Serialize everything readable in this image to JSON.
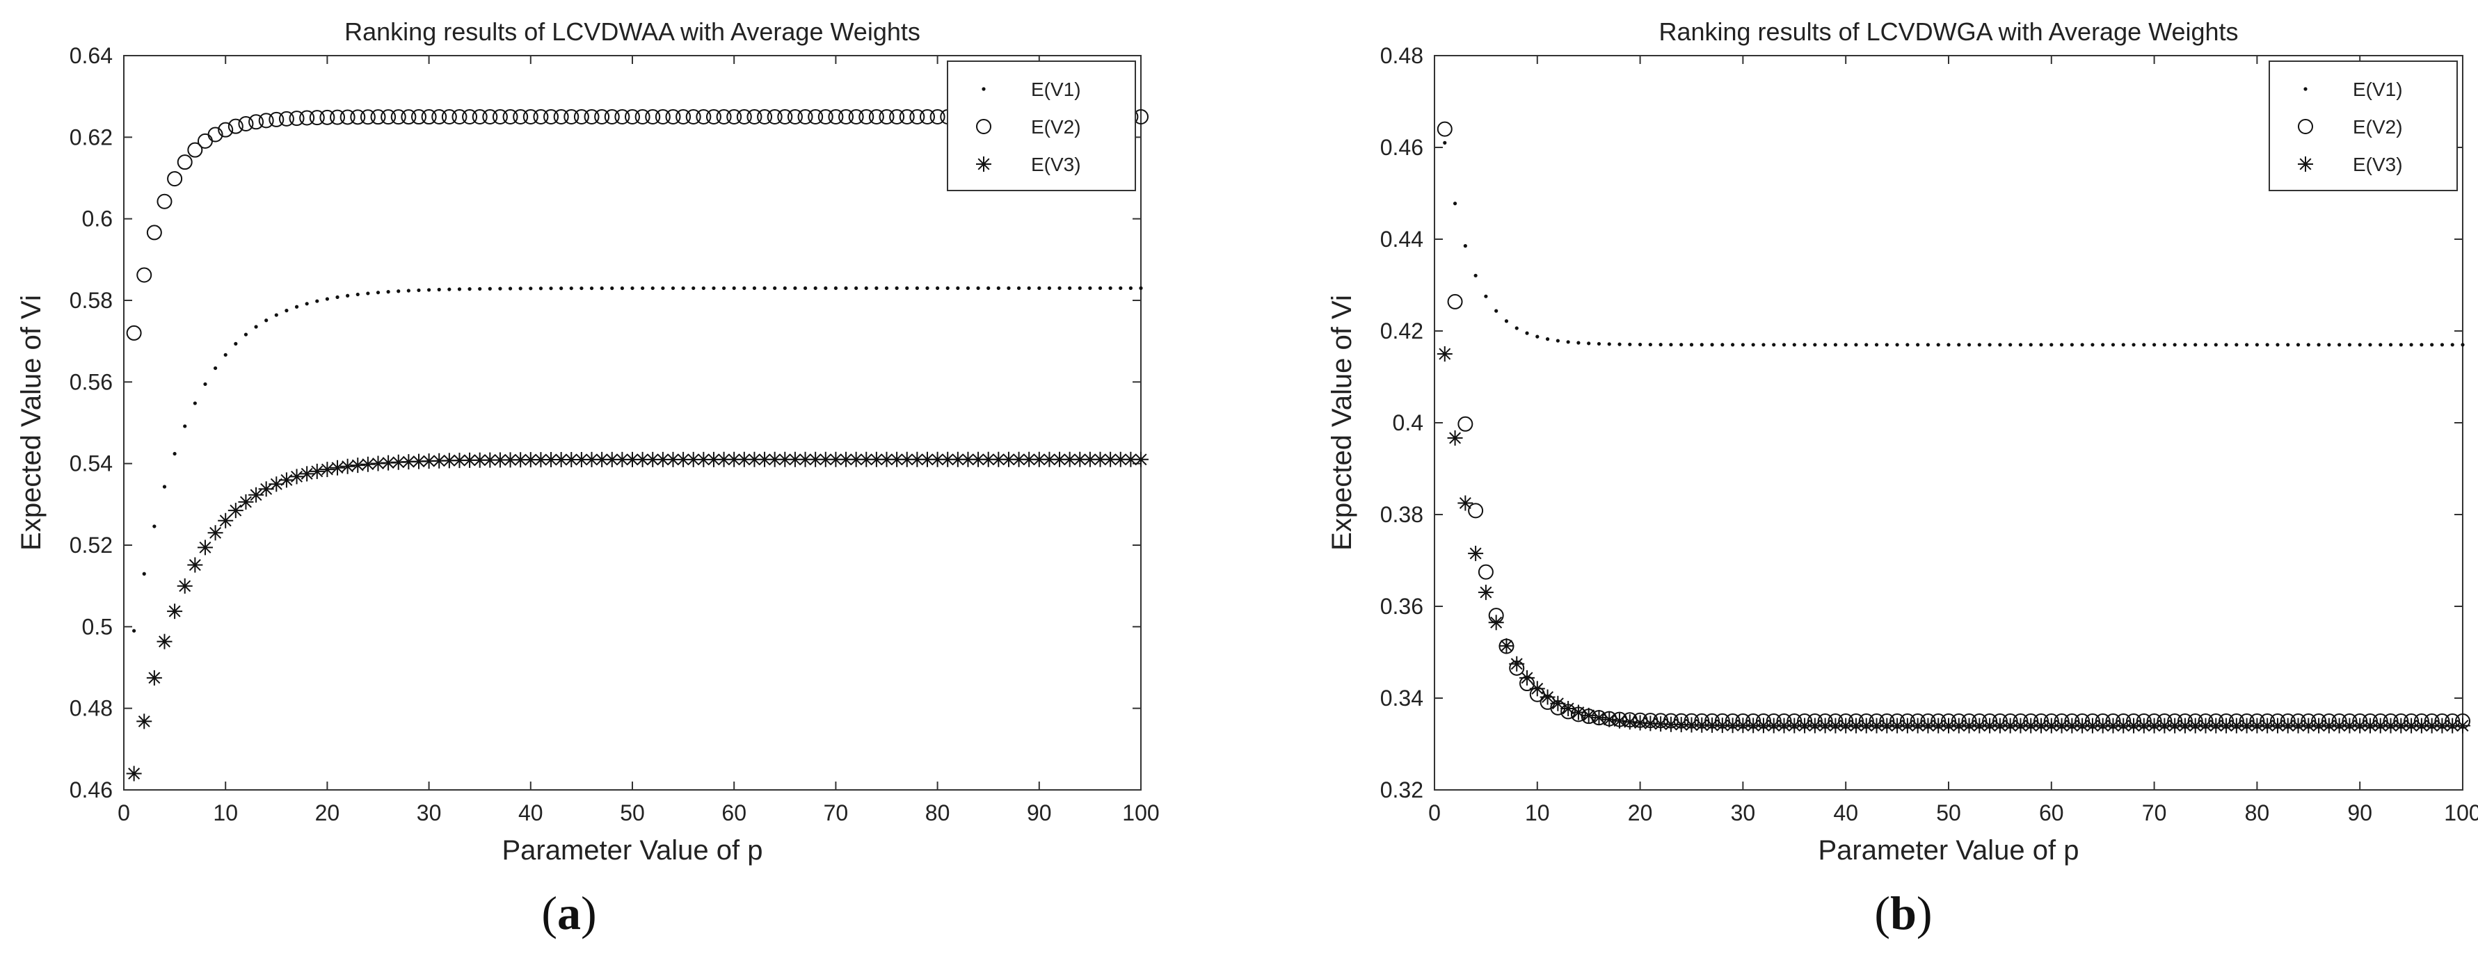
{
  "chart_data": [
    {
      "type": "scatter",
      "panel": "(a)",
      "title": "Ranking results of LCVDWAA with Average Weights",
      "xlabel": "Parameter Value of p",
      "ylabel": "Expected Value of Vi",
      "xlim": [
        0,
        100
      ],
      "ylim": [
        0.46,
        0.64
      ],
      "xticks": [
        0,
        10,
        20,
        30,
        40,
        50,
        60,
        70,
        80,
        90,
        100
      ],
      "yticks": [
        0.46,
        0.48,
        0.5,
        0.52,
        0.54,
        0.56,
        0.58,
        0.6,
        0.62,
        0.64
      ],
      "xtick_labels": [
        "0",
        "10",
        "20",
        "30",
        "40",
        "50",
        "60",
        "70",
        "80",
        "90",
        "100"
      ],
      "ytick_labels": [
        "0.46",
        "0.48",
        "0.5",
        "0.52",
        "0.54",
        "0.56",
        "0.58",
        "0.6",
        "0.62",
        "0.64"
      ],
      "legend_position": "top-right",
      "series": [
        {
          "name": "E(V1)",
          "marker": "dot",
          "x_start": 1,
          "x_end": 100,
          "start": 0.499,
          "limit": 0.583,
          "tau": 5.5
        },
        {
          "name": "E(V2)",
          "marker": "circle",
          "x_start": 1,
          "x_end": 100,
          "start": 0.572,
          "limit": 0.625,
          "tau": 3.2
        },
        {
          "name": "E(V3)",
          "marker": "star",
          "x_start": 1,
          "x_end": 100,
          "start": 0.464,
          "limit": 0.541,
          "tau": 5.5
        }
      ]
    },
    {
      "type": "scatter",
      "panel": "(b)",
      "title": "Ranking results of LCVDWGA with Average Weights",
      "xlabel": "Parameter Value of p",
      "ylabel": "Expected Value of Vi",
      "xlim": [
        0,
        100
      ],
      "ylim": [
        0.32,
        0.48
      ],
      "xticks": [
        0,
        10,
        20,
        30,
        40,
        50,
        60,
        70,
        80,
        90,
        100
      ],
      "yticks": [
        0.32,
        0.34,
        0.36,
        0.38,
        0.4,
        0.42,
        0.44,
        0.46,
        0.48
      ],
      "xtick_labels": [
        "0",
        "10",
        "20",
        "30",
        "40",
        "50",
        "60",
        "70",
        "80",
        "90",
        "100"
      ],
      "ytick_labels": [
        "0.32",
        "0.34",
        "0.36",
        "0.38",
        "0.4",
        "0.42",
        "0.44",
        "0.46",
        "0.48"
      ],
      "legend_position": "top-right",
      "series": [
        {
          "name": "E(V1)",
          "marker": "dot",
          "x_start": 1,
          "x_end": 100,
          "start": 0.461,
          "limit": 0.417,
          "tau": 2.8
        },
        {
          "name": "E(V2)",
          "marker": "circle",
          "x_start": 1,
          "x_end": 100,
          "start": 0.464,
          "limit": 0.335,
          "tau": 2.9
        },
        {
          "name": "E(V3)",
          "marker": "star",
          "x_start": 1,
          "x_end": 100,
          "start": 0.415,
          "limit": 0.334,
          "tau": 3.9
        }
      ]
    }
  ]
}
